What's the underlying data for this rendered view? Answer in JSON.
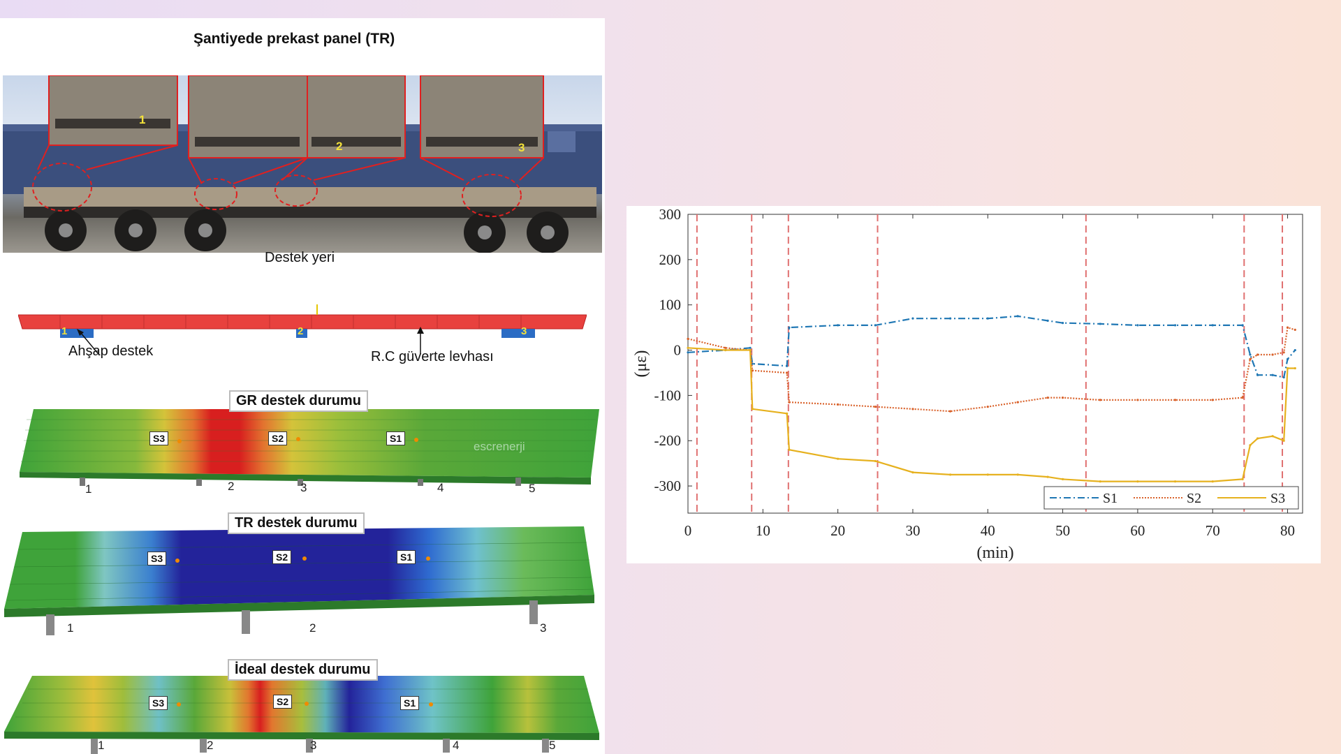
{
  "figure": {
    "photo_title": "Şantiyede prekast panel (TR)",
    "support_location_label": "Destek yeri",
    "wood_support_label": "Ahşap destek",
    "rc_deck_label": "R.C güverte levhası",
    "support_markers": [
      "1",
      "2",
      "3"
    ],
    "panels": [
      {
        "title": "GR destek durumu",
        "sensors": [
          "S3",
          "S2",
          "S1"
        ],
        "support_numbers": [
          "1",
          "2",
          "3",
          "4",
          "5"
        ],
        "watermark": "escrenerji"
      },
      {
        "title": "TR destek durumu",
        "sensors": [
          "S3",
          "S2",
          "S1"
        ],
        "support_numbers": [
          "1",
          "2",
          "3"
        ]
      },
      {
        "title": "İdeal destek durumu",
        "sensors": [
          "S3",
          "S2",
          "S1"
        ],
        "support_numbers": [
          "1",
          "2",
          "3",
          "4",
          "5"
        ]
      }
    ]
  },
  "colors": {
    "s1": "#1f77b4",
    "s2": "#d9622b",
    "s3": "#e6b11e",
    "event_line": "#e07070",
    "panel_red": "#e8413e",
    "support_blue": "#2b6cc4"
  },
  "chart_data": {
    "type": "line",
    "xlabel": "(min)",
    "ylabel": "(με)",
    "xlim": [
      0,
      82
    ],
    "ylim": [
      -360,
      300
    ],
    "xticks": [
      "0",
      "10",
      "20",
      "30",
      "40",
      "50",
      "60",
      "70",
      "80"
    ],
    "yticks": [
      "300",
      "200",
      "100",
      "0",
      "-100",
      "-200",
      "-300"
    ],
    "vertical_event_lines": [
      1.2,
      8.5,
      13.4,
      25.3,
      53.1,
      74.2,
      79.3
    ],
    "legend_position": "bottom-right",
    "series": [
      {
        "name": "S1",
        "style": "dash-dot",
        "x": [
          0,
          5,
          8.3,
          8.6,
          13.2,
          13.5,
          20,
          25,
          30,
          35,
          40,
          44,
          48,
          50,
          55,
          60,
          65,
          70,
          74,
          75,
          76,
          78,
          79.5,
          80,
          81
        ],
        "y": [
          -5,
          0,
          5,
          -30,
          -35,
          50,
          55,
          55,
          70,
          70,
          70,
          75,
          65,
          60,
          58,
          55,
          55,
          55,
          55,
          -10,
          -55,
          -55,
          -60,
          -20,
          0
        ]
      },
      {
        "name": "S2",
        "style": "dotted",
        "x": [
          0,
          5,
          8.3,
          8.6,
          13.2,
          13.5,
          20,
          25,
          30,
          35,
          40,
          44,
          48,
          50,
          55,
          60,
          65,
          70,
          74,
          75,
          76,
          78,
          79.5,
          80,
          81
        ],
        "y": [
          25,
          5,
          0,
          -45,
          -50,
          -115,
          -120,
          -125,
          -130,
          -135,
          -125,
          -115,
          -105,
          -105,
          -110,
          -110,
          -110,
          -110,
          -105,
          -20,
          -10,
          -10,
          -5,
          50,
          45
        ]
      },
      {
        "name": "S3",
        "style": "solid",
        "x": [
          0,
          5,
          8.3,
          8.6,
          13.2,
          13.5,
          20,
          25,
          30,
          35,
          40,
          44,
          48,
          50,
          55,
          60,
          65,
          70,
          74,
          75,
          76,
          78,
          79.5,
          80,
          81
        ],
        "y": [
          5,
          0,
          0,
          -130,
          -140,
          -220,
          -240,
          -245,
          -270,
          -275,
          -275,
          -275,
          -280,
          -285,
          -290,
          -290,
          -290,
          -290,
          -285,
          -210,
          -195,
          -190,
          -200,
          -40,
          -40
        ]
      }
    ]
  }
}
